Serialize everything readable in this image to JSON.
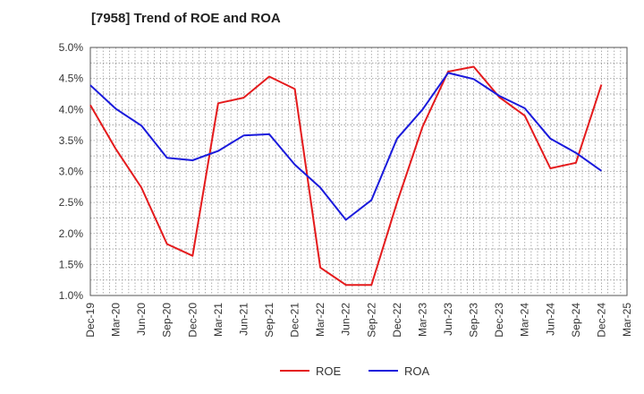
{
  "chart_data": {
    "type": "line",
    "title": "[7958]  Trend of ROE and ROA",
    "categories": [
      "Dec-19",
      "Mar-20",
      "Jun-20",
      "Sep-20",
      "Dec-20",
      "Mar-21",
      "Jun-21",
      "Sep-21",
      "Dec-21",
      "Mar-22",
      "Jun-22",
      "Sep-22",
      "Dec-22",
      "Mar-23",
      "Jun-23",
      "Sep-23",
      "Dec-23",
      "Mar-24",
      "Jun-24",
      "Sep-24",
      "Dec-24",
      "Mar-25"
    ],
    "series": [
      {
        "name": "ROE",
        "color": "#e41a1c",
        "values": [
          4.07,
          3.36,
          2.74,
          1.83,
          1.64,
          4.1,
          4.19,
          4.53,
          4.33,
          1.45,
          1.17,
          1.17,
          2.5,
          3.72,
          4.61,
          4.69,
          4.2,
          3.9,
          3.05,
          3.14,
          4.4,
          null
        ]
      },
      {
        "name": "ROA",
        "color": "#1a1adc",
        "values": [
          4.39,
          4.01,
          3.74,
          3.22,
          3.18,
          3.33,
          3.58,
          3.6,
          3.11,
          2.74,
          2.22,
          2.54,
          3.53,
          4.0,
          4.59,
          4.49,
          4.22,
          4.02,
          3.53,
          3.3,
          3.01,
          null
        ]
      }
    ],
    "yticks": [
      "1.0%",
      "1.5%",
      "2.0%",
      "2.5%",
      "3.0%",
      "3.5%",
      "4.0%",
      "4.5%",
      "5.0%"
    ],
    "ylim": [
      1.0,
      5.0
    ],
    "grid": true,
    "legend": "bottom"
  }
}
